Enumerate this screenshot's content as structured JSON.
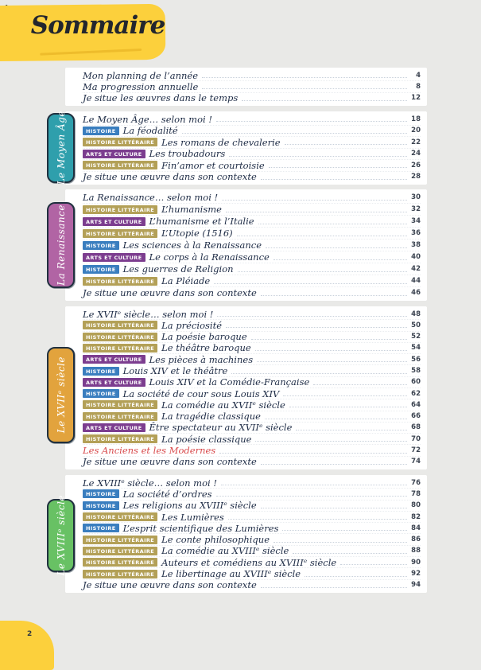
{
  "page": {
    "title": "Sommaire",
    "page_number": "2"
  },
  "theme": {
    "banner_yellow": "#fcd03c",
    "background_gray": "#e9e9e7",
    "panel_white": "#ffffff",
    "text_navy": "#1d2b45",
    "special_red": "#d8494b"
  },
  "badges": {
    "histoire": {
      "label": "HISTOIRE",
      "color": "#3a7ebf"
    },
    "histoire_litteraire": {
      "label": "HISTOIRE LITTÉRAIRE",
      "color": "#b3a057"
    },
    "arts_culture": {
      "label": "ARTS ET CULTURE",
      "color": "#7c3d8f"
    }
  },
  "sections": [
    {
      "id": "intro",
      "tab": null,
      "items": [
        {
          "title": "Mon planning de l’année",
          "page": "4"
        },
        {
          "title": "Ma progression annuelle",
          "page": "8"
        },
        {
          "title": "Je situe les œuvres dans le temps",
          "page": "12"
        }
      ]
    },
    {
      "id": "moyen-age",
      "tab": {
        "label": "Le Moyen Âge",
        "color": "#2f9fac"
      },
      "items": [
        {
          "title": "Le Moyen Âge… selon moi !",
          "page": "18"
        },
        {
          "badge": "histoire",
          "title": "La féodalité",
          "page": "20"
        },
        {
          "badge": "histoire_litteraire",
          "title": "Les romans de chevalerie",
          "page": "22"
        },
        {
          "badge": "arts_culture",
          "title": "Les troubadours",
          "page": "24"
        },
        {
          "badge": "histoire_litteraire",
          "title": "Fin’amor et courtoisie",
          "page": "26"
        },
        {
          "title": "Je situe une œuvre dans son contexte",
          "page": "28"
        }
      ]
    },
    {
      "id": "renaissance",
      "tab": {
        "label": "La Renaissance",
        "color": "#b164a4"
      },
      "items": [
        {
          "title": "La Renaissance… selon moi !",
          "page": "30"
        },
        {
          "badge": "histoire_litteraire",
          "title": "L’humanisme",
          "page": "32"
        },
        {
          "badge": "arts_culture",
          "title": "L’humanisme et l’Italie",
          "page": "34"
        },
        {
          "badge": "histoire_litteraire",
          "title": "L’Utopie (1516)",
          "page": "36"
        },
        {
          "badge": "histoire",
          "title": "Les sciences à la Renaissance",
          "page": "38"
        },
        {
          "badge": "arts_culture",
          "title": "Le corps à la Renaissance",
          "page": "40"
        },
        {
          "badge": "histoire",
          "title": "Les guerres de Religion",
          "page": "42"
        },
        {
          "badge": "histoire_litteraire",
          "title": "La Pléiade",
          "page": "44"
        },
        {
          "title": "Je situe une œuvre dans son contexte",
          "page": "46"
        }
      ]
    },
    {
      "id": "xvii-siecle",
      "tab": {
        "label": "Le XVIIᵉ siècle",
        "color": "#e2a33d"
      },
      "items": [
        {
          "title": "Le XVIIᵉ siècle… selon moi !",
          "page": "48"
        },
        {
          "badge": "histoire_litteraire",
          "title": "La préciosité",
          "page": "50"
        },
        {
          "badge": "histoire_litteraire",
          "title": "La poésie baroque",
          "page": "52"
        },
        {
          "badge": "histoire_litteraire",
          "title": "Le théâtre baroque",
          "page": "54"
        },
        {
          "badge": "arts_culture",
          "title": "Les pièces à machines",
          "page": "56"
        },
        {
          "badge": "histoire",
          "title": "Louis XIV et le théâtre",
          "page": "58"
        },
        {
          "badge": "arts_culture",
          "title": "Louis XIV et la Comédie-Française",
          "page": "60"
        },
        {
          "badge": "histoire",
          "title": "La société de cour sous Louis XIV",
          "page": "62"
        },
        {
          "badge": "histoire_litteraire",
          "title": "La comédie au XVIIᵉ siècle",
          "page": "64"
        },
        {
          "badge": "histoire_litteraire",
          "title": "La tragédie classique",
          "page": "66"
        },
        {
          "badge": "arts_culture",
          "title": "Être spectateur au XVIIᵉ siècle",
          "page": "68"
        },
        {
          "badge": "histoire_litteraire",
          "title": "La poésie classique",
          "page": "70"
        },
        {
          "title": "Les Anciens et les Modernes",
          "page": "72",
          "style": "red"
        },
        {
          "title": "Je situe une œuvre dans son contexte",
          "page": "74"
        }
      ]
    },
    {
      "id": "xviii-siecle",
      "tab": {
        "label": "Le XVIIIᵉ siècle",
        "color": "#68c164"
      },
      "items": [
        {
          "title": "Le XVIIIᵉ siècle… selon moi !",
          "page": "76"
        },
        {
          "badge": "histoire",
          "title": "La société d’ordres",
          "page": "78"
        },
        {
          "badge": "histoire",
          "title": "Les religions au XVIIIᵉ siècle",
          "page": "80"
        },
        {
          "badge": "histoire_litteraire",
          "title": "Les Lumières",
          "page": "82"
        },
        {
          "badge": "histoire",
          "title": "L’esprit scientifique des Lumières",
          "page": "84"
        },
        {
          "badge": "histoire_litteraire",
          "title": "Le conte philosophique",
          "page": "86"
        },
        {
          "badge": "histoire_litteraire",
          "title": "La comédie au XVIIIᵉ siècle",
          "page": "88"
        },
        {
          "badge": "histoire_litteraire",
          "title": "Auteurs et comédiens au XVIIIᵉ siècle",
          "page": "90"
        },
        {
          "badge": "histoire_litteraire",
          "title": "Le libertinage au XVIIIᵉ siècle",
          "page": "92"
        },
        {
          "title": "Je situe une œuvre dans son contexte",
          "page": "94"
        }
      ]
    }
  ]
}
